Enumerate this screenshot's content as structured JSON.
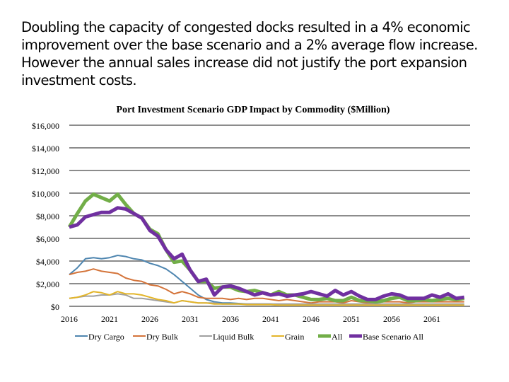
{
  "headline": "Doubling the capacity of congested docks resulted in a 4% economic improvement over the base scenario and a 2% average flow increase.  However the annual sales increase did not justify the port expansion investment costs.",
  "chart_data": {
    "type": "line",
    "title": "Port Investment Scenario GDP Impact by Commodity ($Million)",
    "xlabel": "",
    "ylabel": "",
    "x_start": 2016,
    "x_end": 2065,
    "xticks": [
      "2016",
      "2021",
      "2026",
      "2031",
      "2036",
      "2041",
      "2046",
      "2051",
      "2056",
      "2061"
    ],
    "ylim": [
      0,
      16000
    ],
    "yticks": [
      "$0",
      "$2,000",
      "$4,000",
      "$6,000",
      "$8,000",
      "$10,000",
      "$12,000",
      "$14,000",
      "$16,000"
    ],
    "grid": true,
    "legend": "bottom",
    "series": [
      {
        "name": "Dry Cargo",
        "color": "#4f86b0",
        "width": 2,
        "values": [
          2800,
          3400,
          4200,
          4300,
          4200,
          4300,
          4500,
          4400,
          4200,
          4100,
          3800,
          3600,
          3300,
          2800,
          2200,
          1600,
          1000,
          600,
          400,
          300,
          300,
          250,
          200,
          200,
          200,
          200,
          150,
          150,
          150,
          150,
          150,
          150,
          150,
          150,
          150,
          150,
          150,
          150,
          150,
          150,
          150,
          150,
          150,
          150,
          150,
          150,
          150,
          150,
          150,
          150
        ]
      },
      {
        "name": "Dry Bulk",
        "color": "#d4743a",
        "width": 2,
        "values": [
          2800,
          3000,
          3100,
          3300,
          3100,
          3000,
          2900,
          2500,
          2300,
          2200,
          1900,
          1800,
          1500,
          1100,
          1300,
          1100,
          800,
          700,
          700,
          700,
          600,
          700,
          600,
          700,
          700,
          600,
          500,
          600,
          500,
          400,
          300,
          400,
          400,
          400,
          300,
          500,
          400,
          300,
          300,
          400,
          400,
          400,
          300,
          400,
          400,
          400,
          400,
          400,
          400,
          400
        ]
      },
      {
        "name": "Liquid Bulk",
        "color": "#a0a0a0",
        "width": 2,
        "values": [
          700,
          800,
          900,
          900,
          1000,
          1000,
          1100,
          1000,
          700,
          700,
          600,
          500,
          400,
          300,
          500,
          400,
          300,
          300,
          300,
          200,
          200,
          200,
          200,
          200,
          200,
          200,
          200,
          200,
          200,
          200,
          200,
          200,
          200,
          200,
          200,
          200,
          200,
          200,
          200,
          200,
          200,
          200,
          200,
          200,
          200,
          200,
          200,
          200,
          200,
          200
        ]
      },
      {
        "name": "Grain",
        "color": "#e3b52a",
        "width": 2,
        "values": [
          700,
          800,
          1000,
          1300,
          1200,
          1000,
          1300,
          1100,
          1100,
          1000,
          800,
          600,
          500,
          300,
          500,
          400,
          300,
          300,
          200,
          200,
          200,
          200,
          150,
          150,
          150,
          150,
          100,
          100,
          100,
          100,
          100,
          100,
          100,
          100,
          100,
          100,
          100,
          100,
          100,
          100,
          100,
          100,
          100,
          100,
          100,
          100,
          100,
          100,
          100,
          100
        ]
      },
      {
        "name": "All",
        "color": "#72ae48",
        "width": 5,
        "values": [
          7000,
          8200,
          9300,
          9900,
          9600,
          9300,
          9900,
          9000,
          8200,
          7800,
          6800,
          6400,
          5000,
          3900,
          4000,
          3200,
          2200,
          2200,
          1600,
          1700,
          1700,
          1400,
          1300,
          1400,
          1200,
          1000,
          1300,
          1000,
          1000,
          800,
          600,
          600,
          700,
          500,
          500,
          800,
          500,
          500,
          400,
          500,
          700,
          800,
          500,
          500,
          600,
          500,
          600,
          700,
          600,
          700
        ]
      },
      {
        "name": "Base Scenario All",
        "color": "#7030a0",
        "width": 5,
        "values": [
          7000,
          7200,
          7900,
          8100,
          8300,
          8300,
          8700,
          8600,
          8200,
          7800,
          6700,
          6200,
          5000,
          4200,
          4600,
          3200,
          2200,
          2400,
          1000,
          1700,
          1800,
          1600,
          1300,
          1000,
          1200,
          1000,
          1100,
          900,
          1000,
          1100,
          1300,
          1100,
          900,
          1400,
          1000,
          1300,
          900,
          600,
          600,
          900,
          1100,
          1000,
          700,
          700,
          700,
          1000,
          800,
          1100,
          700,
          800
        ]
      }
    ]
  }
}
